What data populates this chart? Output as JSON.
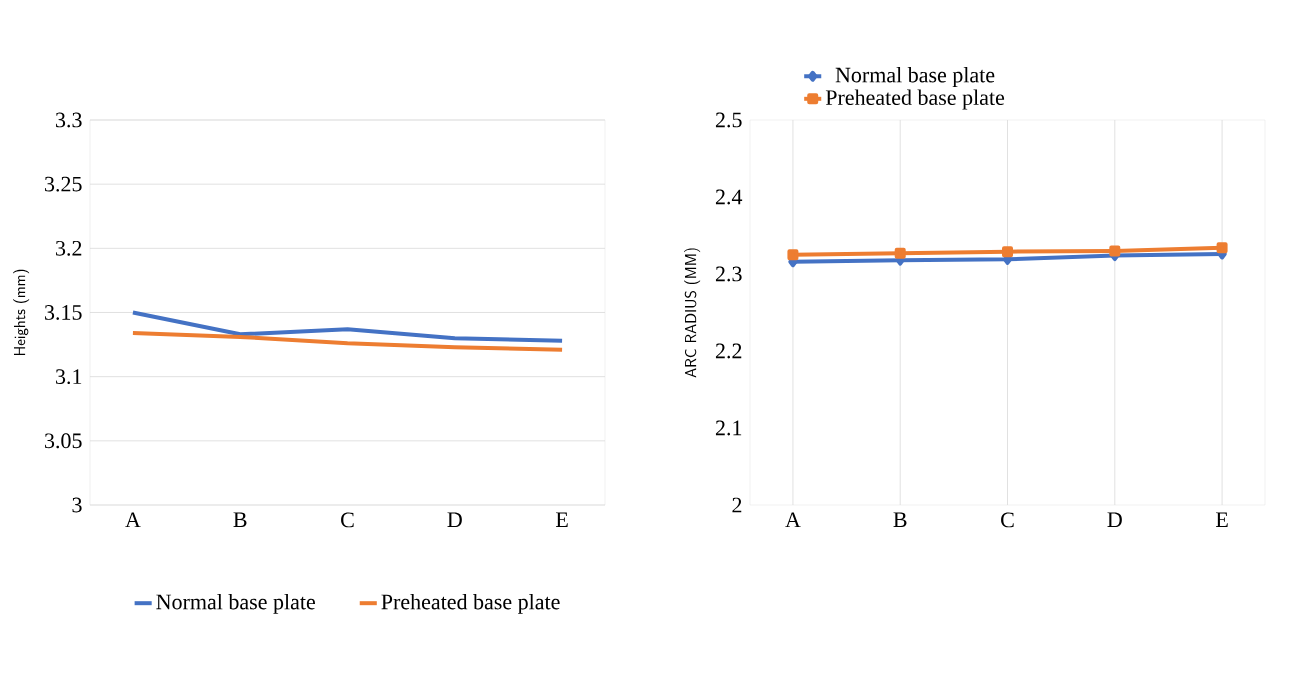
{
  "chart_data": [
    {
      "type": "line",
      "ylabel": "Heights (mm)",
      "categories": [
        "A",
        "B",
        "C",
        "D",
        "E"
      ],
      "ylim": [
        3,
        3.3
      ],
      "yticks": [
        3,
        3.05,
        3.1,
        3.15,
        3.2,
        3.25,
        3.3
      ],
      "grid": "y",
      "legend": "bottom",
      "series": [
        {
          "name": "Normal base plate",
          "color": "#4472c4",
          "values": [
            3.15,
            3.133,
            3.137,
            3.13,
            3.128
          ]
        },
        {
          "name": "Preheated base plate",
          "color": "#ed7d31",
          "values": [
            3.134,
            3.131,
            3.126,
            3.123,
            3.121
          ]
        }
      ]
    },
    {
      "type": "line",
      "ylabel": "ARC RADIUS (MM)",
      "categories": [
        "A",
        "B",
        "C",
        "D",
        "E"
      ],
      "ylim": [
        2,
        2.5
      ],
      "yticks": [
        2,
        2.1,
        2.2,
        2.3,
        2.4,
        2.5
      ],
      "grid": "x",
      "legend": "top",
      "series": [
        {
          "name": "Normal base plate",
          "color": "#4472c4",
          "marker": "diamond",
          "values": [
            2.316,
            2.318,
            2.319,
            2.324,
            2.326
          ]
        },
        {
          "name": "Preheated base plate",
          "color": "#ed7d31",
          "marker": "square",
          "values": [
            2.325,
            2.327,
            2.329,
            2.33,
            2.334
          ]
        }
      ]
    }
  ]
}
